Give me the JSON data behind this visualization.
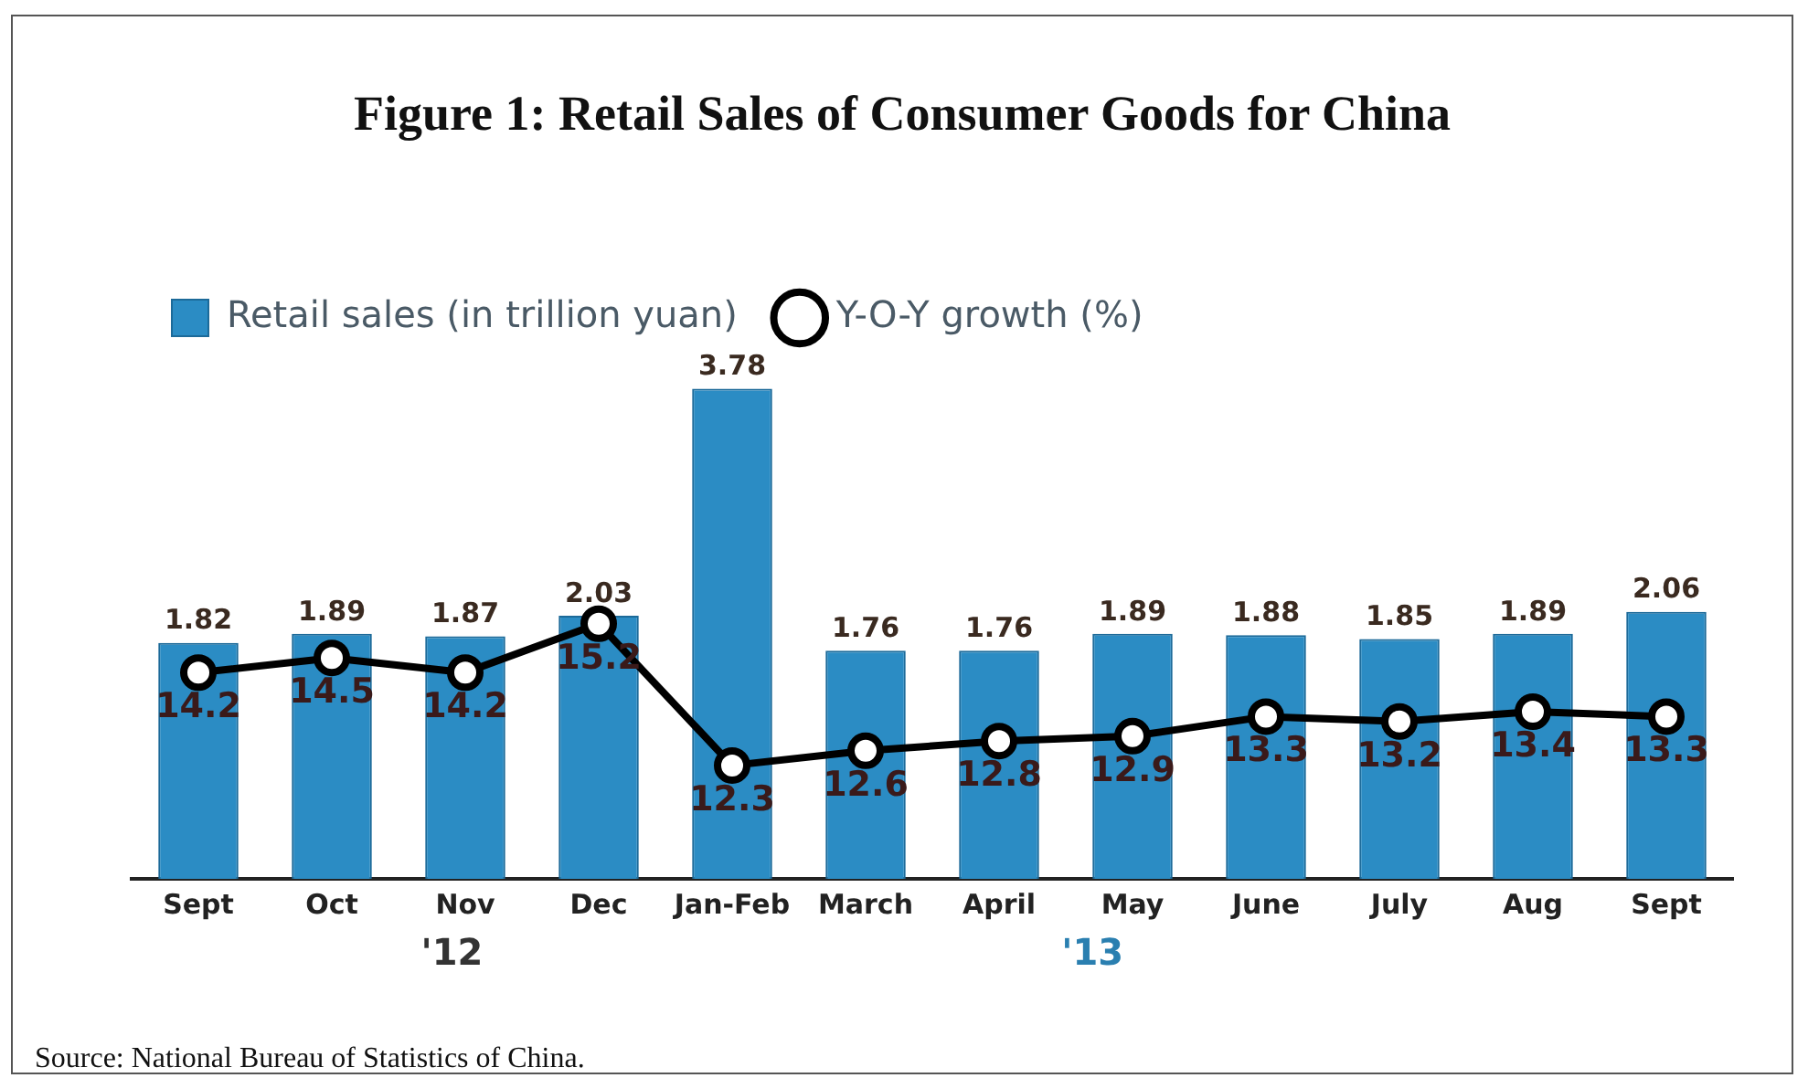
{
  "chart_data": {
    "type": "bar",
    "title": "Figure 1: Retail Sales of Consumer Goods for China",
    "categories": [
      "Sept",
      "Oct",
      "Nov",
      "Dec",
      "Jan-Feb",
      "March",
      "April",
      "May",
      "June",
      "July",
      "Aug",
      "Sept"
    ],
    "series": [
      {
        "name": "Retail sales (in trillion yuan)",
        "color": "#2b8cc4",
        "values": [
          1.82,
          1.89,
          1.87,
          2.03,
          3.78,
          1.76,
          1.76,
          1.89,
          1.88,
          1.85,
          1.89,
          2.06
        ]
      },
      {
        "name": "Y-O-Y growth (%)",
        "type": "line",
        "axis": "y2",
        "color": "#000000",
        "marker": "circle",
        "values": [
          14.2,
          14.5,
          14.2,
          15.2,
          12.3,
          12.6,
          12.8,
          12.9,
          13.3,
          13.2,
          13.4,
          13.3
        ]
      }
    ],
    "data_labels": true,
    "legend": "top left",
    "tick_labels": "x",
    "annotations": [
      "'12",
      "'13",
      "Source: National Bureau of Statistics of China."
    ]
  }
}
